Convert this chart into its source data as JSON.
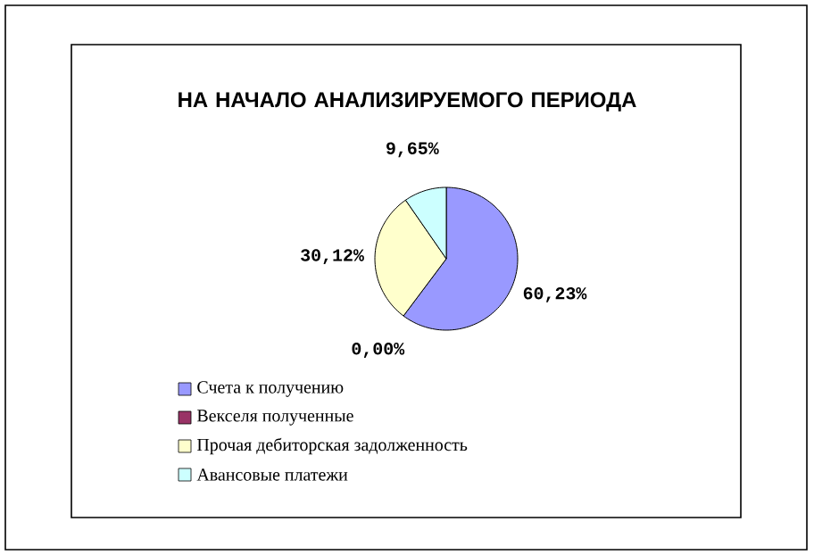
{
  "chart_data": {
    "type": "pie",
    "title": "НА НАЧАЛО АНАЛИЗИРУЕМОГО ПЕРИОДА",
    "categories": [
      "Счета к получению",
      "Векселя полученные",
      "Прочая дебиторская задолженность",
      "Авансовые платежи"
    ],
    "values": [
      60.23,
      0.0,
      30.12,
      9.65
    ],
    "colors": [
      "#9999ff",
      "#993366",
      "#ffffcc",
      "#ccffff"
    ],
    "value_labels": [
      "60,23%",
      "0,00%",
      "30,12%",
      "9,65%"
    ],
    "legend": "bottom"
  }
}
